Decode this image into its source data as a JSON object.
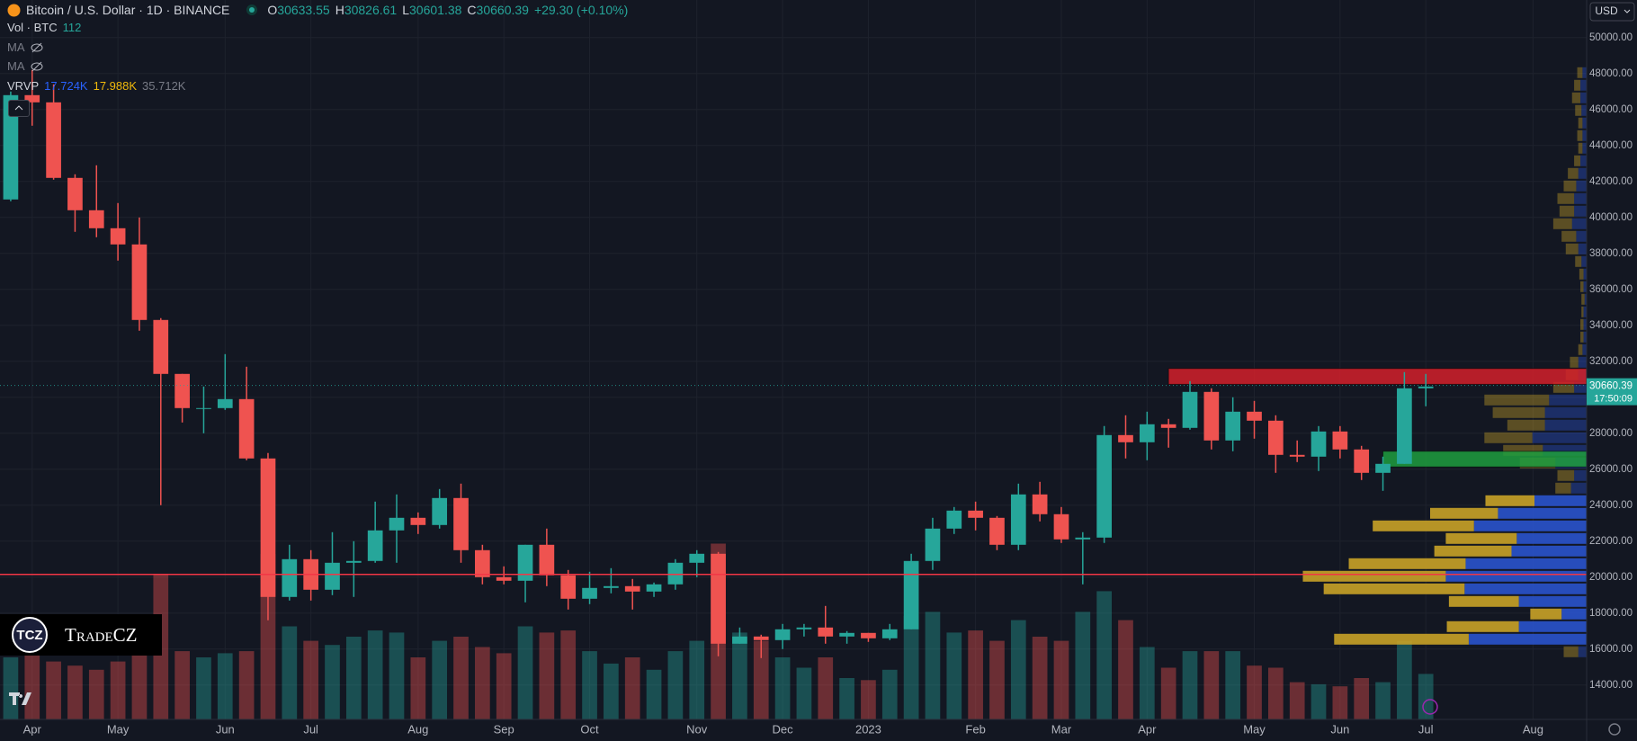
{
  "header": {
    "symbol": "Bitcoin / U.S. Dollar · 1D · BINANCE",
    "ohlc": [
      {
        "label": "O",
        "value": "30633.55"
      },
      {
        "label": "H",
        "value": "30826.61"
      },
      {
        "label": "L",
        "value": "30601.38"
      },
      {
        "label": "C",
        "value": "30660.39"
      }
    ],
    "change": "+29.30 (+0.10%)",
    "volume": {
      "label": "Vol · BTC",
      "value": "112"
    },
    "indicators": [
      "MA",
      "MA"
    ],
    "vrvp": {
      "label": "VRVP",
      "values": [
        "17.724K",
        "17.988K",
        "35.712K"
      ]
    }
  },
  "currency": "USD",
  "watermark": {
    "badge": "TCZ",
    "name": "TradeCZ"
  },
  "chart_data": {
    "type": "candlestick",
    "categories": [
      null,
      "Apr",
      null,
      null,
      null,
      "May",
      null,
      null,
      null,
      null,
      "Jun",
      null,
      null,
      null,
      "Jul",
      null,
      null,
      null,
      null,
      "Aug",
      null,
      null,
      null,
      "Sep",
      null,
      null,
      null,
      "Oct",
      null,
      null,
      null,
      null,
      "Nov",
      null,
      null,
      null,
      "Dec",
      null,
      null,
      null,
      "2023",
      null,
      null,
      null,
      null,
      "Feb",
      null,
      null,
      null,
      "Mar",
      null,
      null,
      null,
      "Apr",
      null,
      null,
      null,
      null,
      "May",
      null,
      null,
      null,
      "Jun",
      null,
      null,
      null,
      "Jul",
      null,
      null,
      null,
      null,
      "Aug",
      null,
      null
    ],
    "open": [
      41000,
      46800,
      46400,
      42200,
      40400,
      39400,
      38500,
      34300,
      31300,
      29400,
      29400,
      29900,
      26600,
      18900,
      21000,
      19300,
      20800,
      20900,
      22600,
      23300,
      22900,
      24400,
      21500,
      20000,
      19800,
      21800,
      20100,
      18800,
      19400,
      19500,
      19200,
      19600,
      20800,
      21300,
      16300,
      16700,
      16500,
      17100,
      17200,
      16700,
      16900,
      16600,
      17100,
      20900,
      22700,
      23700,
      23300,
      21800,
      24600,
      23500,
      22100,
      22200,
      27900,
      27500,
      28500,
      28300,
      30300,
      27600,
      29200,
      28700,
      26800,
      26700,
      28100,
      27100,
      25800,
      26300,
      30500,
      null,
      null,
      null,
      null,
      null,
      null,
      null
    ],
    "high": [
      47000,
      48200,
      47400,
      42400,
      42900,
      40800,
      40000,
      34400,
      31300,
      30600,
      32400,
      31700,
      26900,
      21800,
      21500,
      22500,
      22000,
      24200,
      24600,
      23600,
      24900,
      25200,
      21800,
      20600,
      21800,
      22700,
      20400,
      20300,
      20500,
      19900,
      19700,
      21000,
      21500,
      21400,
      17200,
      16800,
      17400,
      17400,
      18400,
      17000,
      16900,
      17400,
      21300,
      23300,
      23900,
      24200,
      23400,
      25200,
      25300,
      23900,
      22500,
      28400,
      29000,
      29200,
      28800,
      30900,
      30500,
      30000,
      29800,
      29000,
      27600,
      28400,
      28400,
      27300,
      26700,
      31400,
      31300,
      null,
      null,
      null,
      null,
      null,
      null,
      null
    ],
    "low": [
      40900,
      45100,
      42100,
      39200,
      38900,
      37600,
      33700,
      24000,
      28600,
      28000,
      29300,
      26500,
      17600,
      18700,
      18700,
      19000,
      18900,
      20800,
      20800,
      22400,
      22700,
      20800,
      19600,
      19600,
      18600,
      19500,
      18200,
      18500,
      19100,
      18200,
      18900,
      19300,
      20000,
      15600,
      16300,
      15500,
      16000,
      16700,
      16300,
      16300,
      16400,
      16500,
      17100,
      20400,
      22400,
      22600,
      21500,
      21500,
      23100,
      21900,
      19600,
      21900,
      26600,
      26500,
      27200,
      28200,
      27100,
      27000,
      27700,
      25800,
      26400,
      25900,
      26600,
      25400,
      24800,
      26300,
      29500,
      null,
      null,
      null,
      null,
      null,
      null,
      null
    ],
    "close": [
      46800,
      46400,
      42200,
      40400,
      39400,
      38500,
      34300,
      31300,
      29400,
      29400,
      29900,
      26600,
      18900,
      21000,
      19300,
      20800,
      20900,
      22600,
      23300,
      22900,
      24400,
      21500,
      20000,
      19800,
      21800,
      20100,
      18800,
      19400,
      19500,
      19200,
      19600,
      20800,
      21300,
      16300,
      16700,
      16500,
      17100,
      17200,
      16700,
      16900,
      16600,
      17100,
      20900,
      22700,
      23700,
      23300,
      21800,
      24600,
      23500,
      22100,
      22200,
      27900,
      27500,
      28500,
      28300,
      30300,
      27600,
      29200,
      28700,
      26800,
      26700,
      28100,
      27100,
      25800,
      26300,
      30500,
      30600,
      null,
      null,
      null,
      null,
      null,
      null,
      null
    ],
    "volume": [
      300,
      320,
      280,
      260,
      240,
      280,
      380,
      700,
      330,
      300,
      320,
      330,
      800,
      450,
      380,
      360,
      400,
      430,
      420,
      300,
      380,
      400,
      350,
      320,
      450,
      420,
      430,
      330,
      270,
      300,
      240,
      330,
      380,
      850,
      420,
      380,
      300,
      250,
      300,
      200,
      190,
      240,
      500,
      520,
      420,
      430,
      380,
      480,
      400,
      380,
      520,
      620,
      480,
      350,
      250,
      330,
      330,
      330,
      260,
      250,
      180,
      170,
      160,
      200,
      180,
      380,
      220,
      null,
      null,
      null,
      null,
      null,
      null,
      null
    ],
    "volume_ylim": [
      0,
      1000
    ],
    "up_color": "#26a69a",
    "down_color": "#ef5350",
    "ylim": [
      12090,
      52090
    ],
    "yticks": [
      {
        "value": 14000,
        "label": "14000.00"
      },
      {
        "value": 16000,
        "label": "16000.00"
      },
      {
        "value": 18000,
        "label": "18000.00"
      },
      {
        "value": 20000,
        "label": "20000.00"
      },
      {
        "value": 22000,
        "label": "22000.00"
      },
      {
        "value": 24000,
        "label": "24000.00"
      },
      {
        "value": 26000,
        "label": "26000.00"
      },
      {
        "value": 28000,
        "label": "28000.00"
      },
      {
        "value": 30000,
        "label": "30000.00"
      },
      {
        "value": 32000,
        "label": "32000.00"
      },
      {
        "value": 34000,
        "label": "34000.00"
      },
      {
        "value": 36000,
        "label": "36000.00"
      },
      {
        "value": 38000,
        "label": "38000.00"
      },
      {
        "value": 40000,
        "label": "40000.00"
      },
      {
        "value": 42000,
        "label": "42000.00"
      },
      {
        "value": 44000,
        "label": "44000.00"
      },
      {
        "value": 46000,
        "label": "46000.00"
      },
      {
        "value": 48000,
        "label": "48000.00"
      },
      {
        "value": 50000,
        "label": "50000.00"
      }
    ],
    "grid": true,
    "last_price": 30660.39,
    "countdown": "17:50:09",
    "hlines": [
      {
        "value": 20150,
        "color": "#f23645"
      }
    ],
    "zones": [
      {
        "start": 54,
        "ylim": [
          30720,
          31600
        ],
        "color": "#d3202a"
      },
      {
        "start": 64,
        "ylim": [
          26130,
          27000
        ],
        "color": "#1f9d3e"
      }
    ],
    "profile": {
      "bins": [
        15500,
        16200,
        16900,
        17600,
        18300,
        19000,
        19700,
        20400,
        21100,
        21800,
        22500,
        23200,
        23900,
        24600,
        25300,
        26000,
        26700,
        27400,
        28100,
        28800,
        29500,
        30200,
        30900,
        31600,
        32300,
        33000,
        33700,
        34400,
        35100,
        35800,
        36500,
        37200,
        37900,
        38600,
        39300,
        40000,
        40700,
        41400,
        42100,
        42800,
        43500,
        44200,
        44900,
        45600,
        46300,
        47000,
        47700,
        48400
      ],
      "xlim": [
        0,
        300
      ],
      "value_area": [
        16200,
        24600
      ],
      "series": [
        {
          "color": "#2a53cc",
          "values": [
            8,
            113,
            65,
            24,
            65,
            117,
            135,
            116,
            72,
            67,
            108,
            85,
            50,
            15,
            12,
            30,
            42,
            52,
            40,
            40,
            36,
            12,
            8,
            8,
            4,
            3,
            3,
            3,
            2,
            3,
            3,
            5,
            8,
            10,
            14,
            12,
            12,
            10,
            8,
            6,
            4,
            4,
            4,
            5,
            6,
            6,
            4
          ]
        },
        {
          "color": "#c9a227",
          "values": [
            14,
            129,
            69,
            30,
            67,
            135,
            137,
            112,
            74,
            68,
            97,
            65,
            47,
            15,
            16,
            34,
            38,
            46,
            36,
            50,
            62,
            20,
            12,
            8,
            4,
            3,
            3,
            2,
            3,
            3,
            4,
            6,
            12,
            14,
            18,
            14,
            16,
            12,
            10,
            6,
            4,
            5,
            4,
            6,
            8,
            6,
            5
          ]
        }
      ]
    }
  }
}
